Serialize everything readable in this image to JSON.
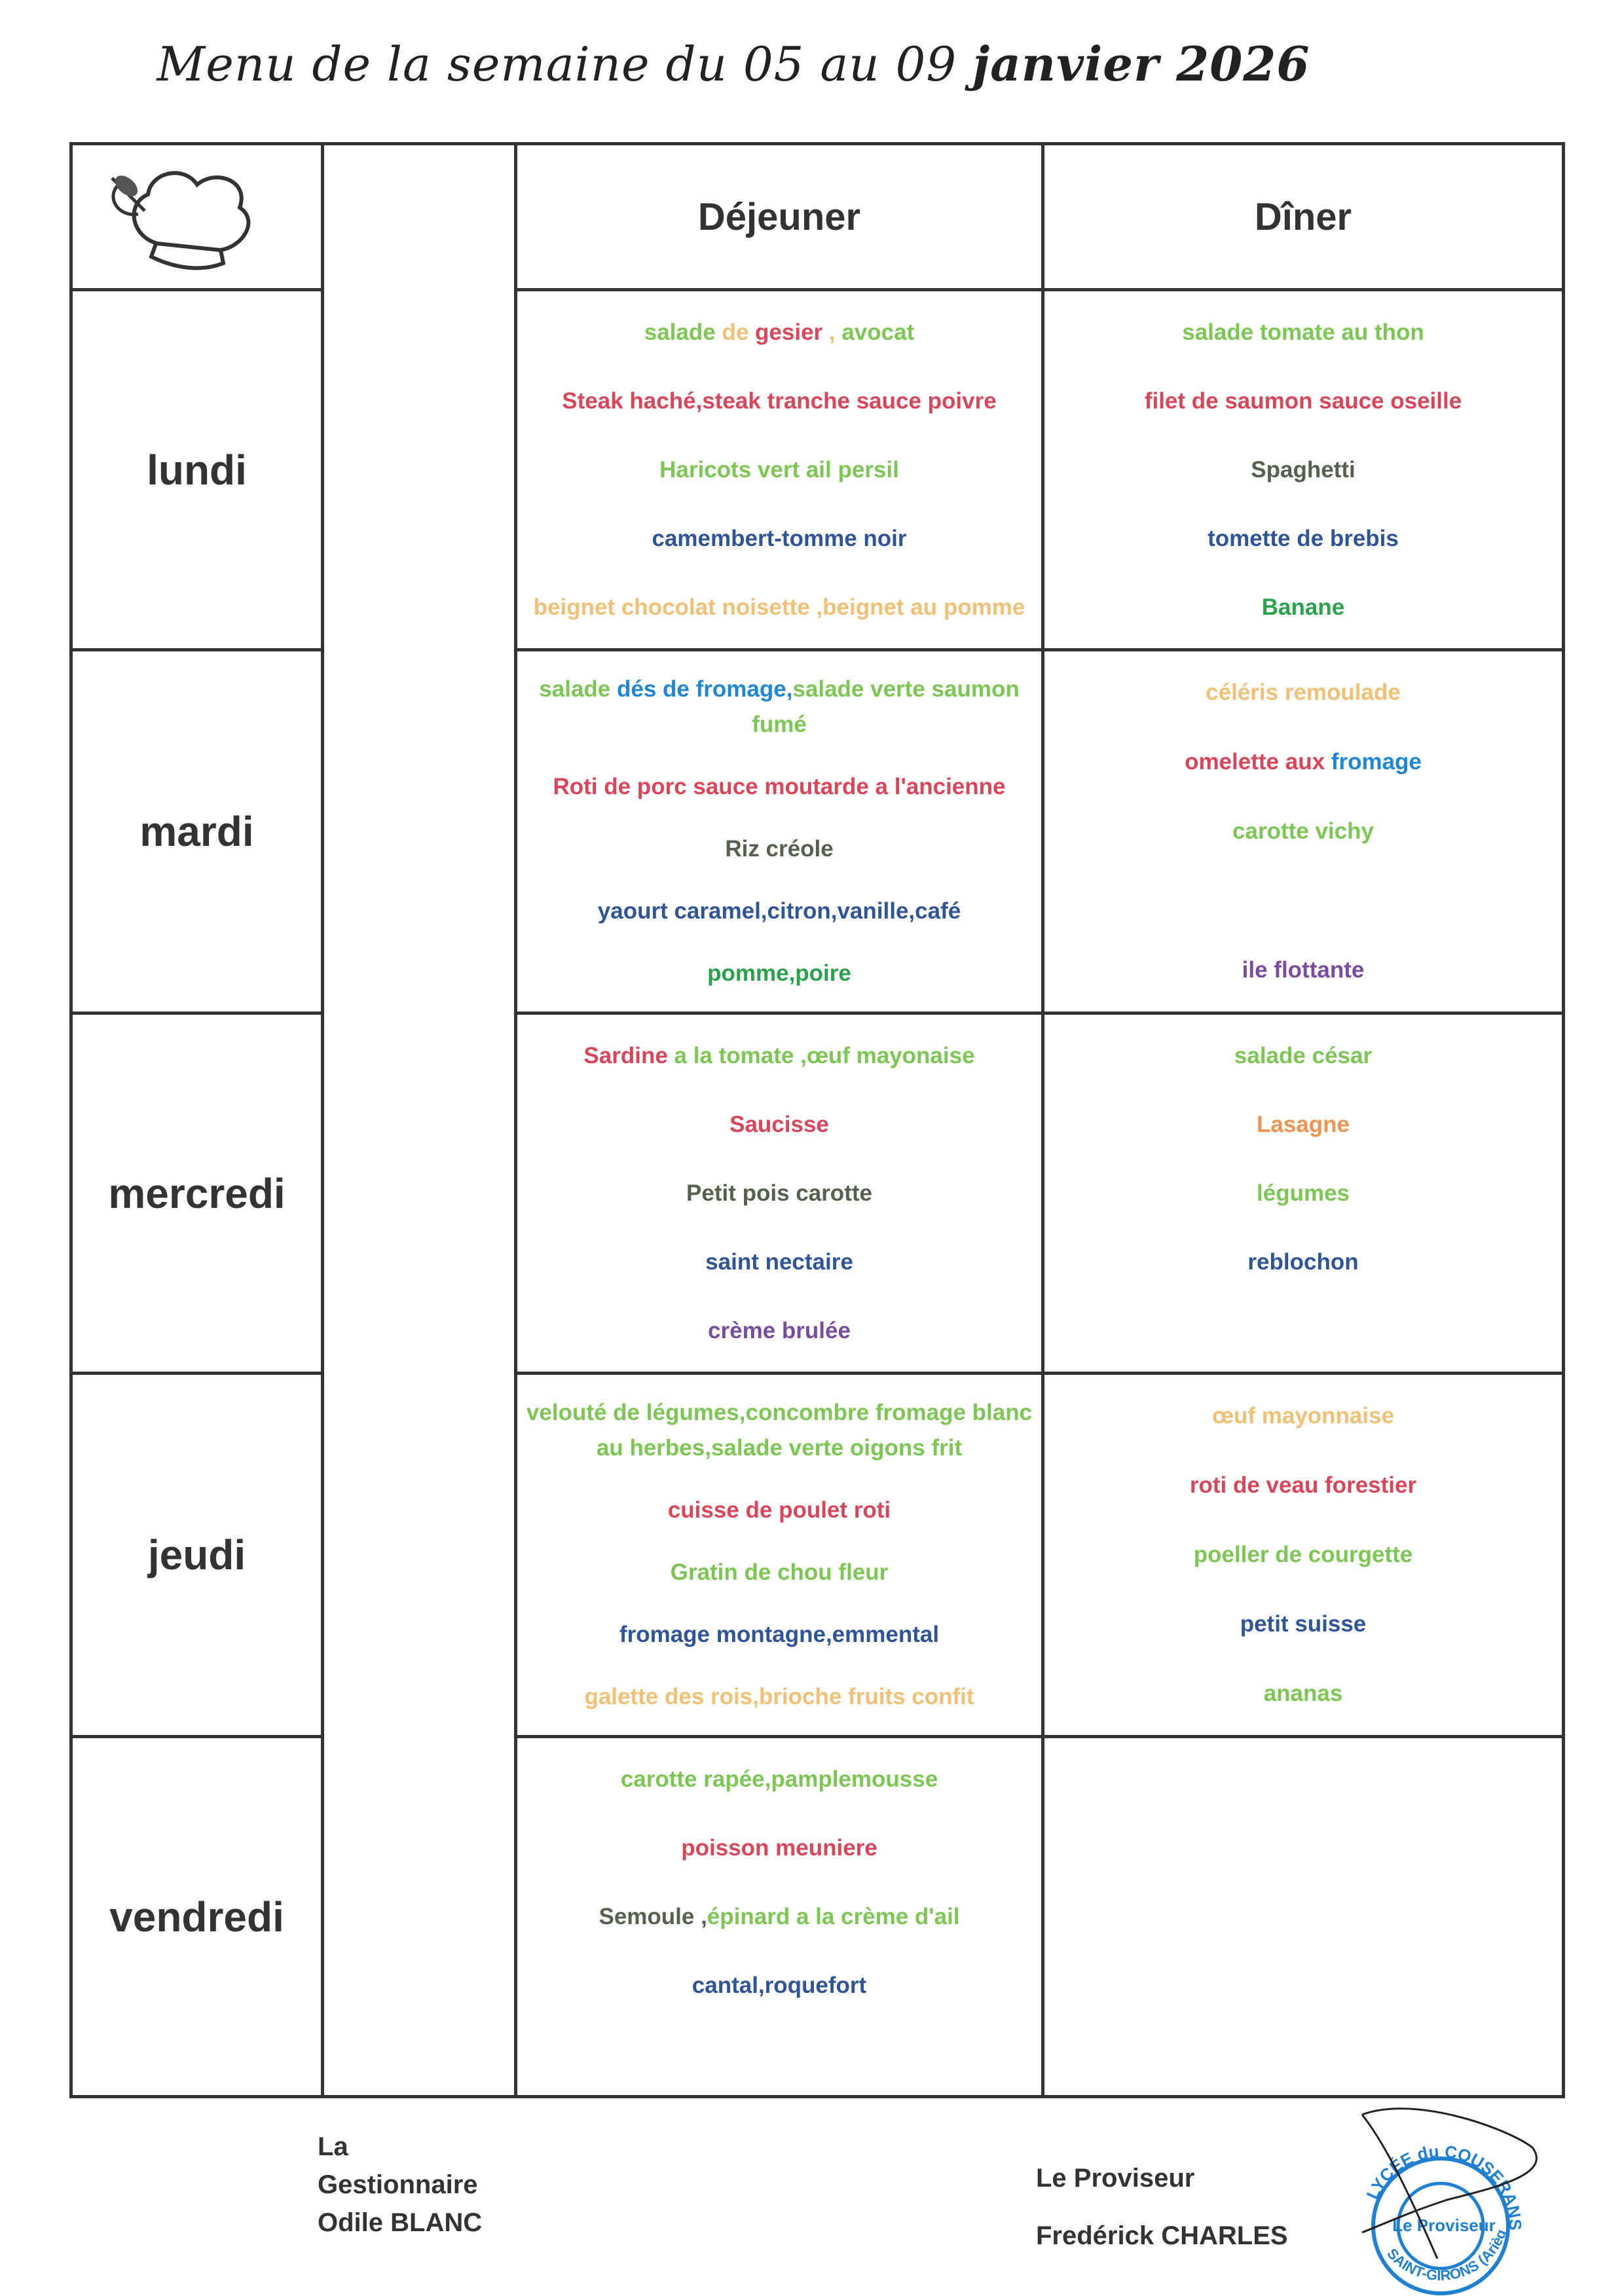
{
  "title": {
    "prefix": "Menu de la semaine du 05 au 09 ",
    "suffix": "janvier 2026"
  },
  "header": {
    "icon": "chef-hat-icon",
    "lunch": "Déjeuner",
    "dinner": "Dîner"
  },
  "colors": {
    "green": "#7cc653",
    "orange": "#f0c074",
    "red": "#d9465a",
    "gray": "#55604f",
    "navy": "#2f5597",
    "blue": "#1f86d4",
    "darkgreen": "#2aa24c",
    "purple": "#7a4c9e",
    "salmon": "#ef9450"
  },
  "days": [
    {
      "name": "lundi",
      "lunch": [
        [
          {
            "t": "salade ",
            "c": "green"
          },
          {
            "t": "de ",
            "c": "orange"
          },
          {
            "t": "gesier",
            "c": "red"
          },
          {
            "t": " , ",
            "c": "orange"
          },
          {
            "t": "avocat",
            "c": "green"
          }
        ],
        [
          {
            "t": "Steak haché,steak tranche sauce poivre",
            "c": "red"
          }
        ],
        [
          {
            "t": "Haricots vert ail persil",
            "c": "green"
          }
        ],
        [
          {
            "t": "camembert-tomme noir",
            "c": "navy"
          }
        ],
        [
          {
            "t": "beignet chocolat noisette ,beignet au pomme",
            "c": "orange"
          }
        ]
      ],
      "dinner": [
        [
          {
            "t": "salade tomate au thon",
            "c": "green"
          }
        ],
        [
          {
            "t": "filet de saumon sauce oseille",
            "c": "red"
          }
        ],
        [
          {
            "t": "Spaghetti",
            "c": "gray"
          }
        ],
        [
          {
            "t": "tomette de brebis",
            "c": "navy"
          }
        ],
        [
          {
            "t": "Banane",
            "c": "darkgreen"
          }
        ]
      ]
    },
    {
      "name": "mardi",
      "lunch": [
        [
          {
            "t": "salade ",
            "c": "green"
          },
          {
            "t": "dés de fromage,",
            "c": "blue"
          },
          {
            "t": "salade verte saumon fumé",
            "c": "green"
          }
        ],
        [
          {
            "t": "Roti de porc sauce moutarde a l'ancienne",
            "c": "red"
          }
        ],
        [
          {
            "t": "Riz créole",
            "c": "gray"
          }
        ],
        [
          {
            "t": "yaourt caramel,citron,vanille,café",
            "c": "navy"
          }
        ],
        [
          {
            "t": "pomme,poire",
            "c": "darkgreen"
          }
        ]
      ],
      "dinner": [
        [
          {
            "t": "céléris remoulade",
            "c": "orange"
          }
        ],
        [
          {
            "t": "omelette aux ",
            "c": "red"
          },
          {
            "t": "fromage",
            "c": "blue"
          }
        ],
        [
          {
            "t": "carotte vichy",
            "c": "green"
          }
        ],
        [],
        [
          {
            "t": "ile flottante",
            "c": "purple"
          }
        ]
      ]
    },
    {
      "name": "mercredi",
      "lunch": [
        [
          {
            "t": "Sardine",
            "c": "red"
          },
          {
            "t": " a la tomate ,œuf mayonaise",
            "c": "green"
          }
        ],
        [
          {
            "t": "Saucisse",
            "c": "red"
          }
        ],
        [
          {
            "t": "Petit pois carotte",
            "c": "gray"
          }
        ],
        [
          {
            "t": "saint nectaire",
            "c": "navy"
          }
        ],
        [
          {
            "t": "crème brulée",
            "c": "purple"
          }
        ]
      ],
      "dinner": [
        [
          {
            "t": "salade césar",
            "c": "green"
          }
        ],
        [
          {
            "t": "Lasagne",
            "c": "salmon"
          }
        ],
        [
          {
            "t": "légumes",
            "c": "green"
          }
        ],
        [
          {
            "t": "reblochon",
            "c": "navy"
          }
        ],
        []
      ]
    },
    {
      "name": "jeudi",
      "lunch": [
        [
          {
            "t": "velouté de légumes,concombre fromage blanc au herbes,salade verte oigons frit",
            "c": "green"
          }
        ],
        [
          {
            "t": "cuisse de poulet roti",
            "c": "red"
          }
        ],
        [
          {
            "t": "Gratin de chou fleur",
            "c": "green"
          }
        ],
        [
          {
            "t": "fromage montagne,emmental",
            "c": "navy"
          }
        ],
        [
          {
            "t": "galette des rois,brioche fruits confit",
            "c": "orange"
          }
        ]
      ],
      "dinner": [
        [
          {
            "t": "œuf mayonnaise",
            "c": "orange"
          }
        ],
        [
          {
            "t": "roti de veau forestier",
            "c": "red"
          }
        ],
        [
          {
            "t": "poeller de courgette",
            "c": "green"
          }
        ],
        [
          {
            "t": "petit suisse",
            "c": "navy"
          }
        ],
        [
          {
            "t": "ananas",
            "c": "green"
          }
        ]
      ]
    },
    {
      "name": "vendredi",
      "lunch": [
        [
          {
            "t": "carotte rapée,pamplemousse",
            "c": "green"
          }
        ],
        [
          {
            "t": "poisson meuniere",
            "c": "red"
          }
        ],
        [
          {
            "t": "Semoule ,",
            "c": "gray"
          },
          {
            "t": "épinard a la crème d'ail",
            "c": "green"
          }
        ],
        [
          {
            "t": "cantal,roquefort",
            "c": "navy"
          }
        ],
        []
      ],
      "dinner": []
    }
  ],
  "signatures": {
    "left": [
      "La",
      "Gestionnaire",
      "Odile BLANC"
    ],
    "right": [
      "Le Proviseur",
      "Fredérick CHARLES"
    ]
  },
  "stamp": {
    "top": "LYCÉE du COUSERANS",
    "center": "Le Proviseur",
    "bottom": "SAINT-GIRONS (Ariège)",
    "color": "#1f7fd0"
  }
}
